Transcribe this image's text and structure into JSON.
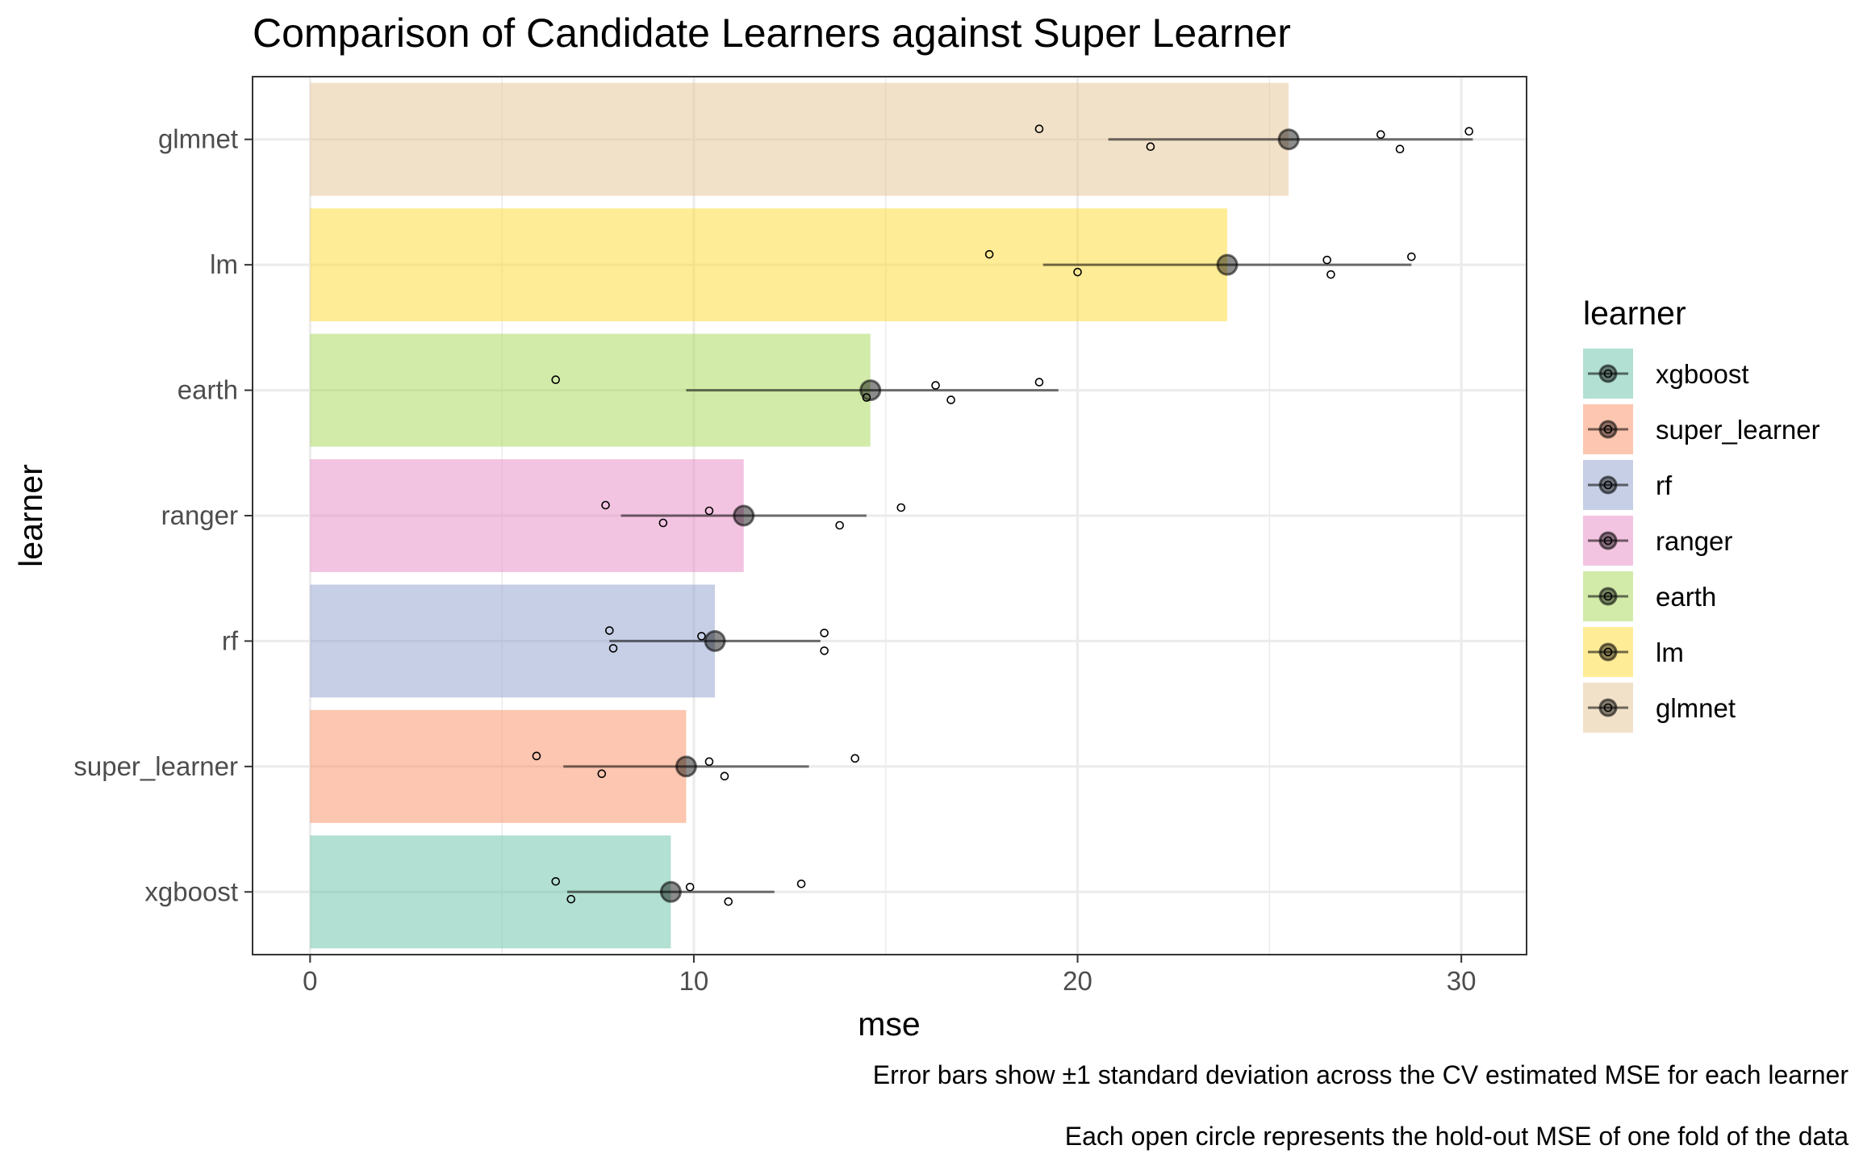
{
  "chart_data": {
    "type": "bar",
    "title": "Comparison of Candidate Learners against Super Learner",
    "xlabel": "mse",
    "ylabel": "learner",
    "xlim": [
      -1.5,
      31.7
    ],
    "x_ticks": [
      0,
      10,
      20,
      30
    ],
    "x_tick_labels": [
      "0",
      "10",
      "20",
      "30"
    ],
    "grid": true,
    "orientation": "horizontal",
    "categories": [
      "xgboost",
      "super_learner",
      "rf",
      "ranger",
      "earth",
      "lm",
      "glmnet"
    ],
    "values": [
      9.4,
      9.8,
      10.55,
      11.3,
      14.6,
      23.9,
      25.5
    ],
    "error_low": [
      6.7,
      6.6,
      7.8,
      8.1,
      9.8,
      19.1,
      20.8
    ],
    "error_high": [
      12.1,
      13.0,
      13.3,
      14.5,
      19.5,
      28.7,
      30.3
    ],
    "fold_points": [
      [
        6.4,
        6.8,
        9.9,
        10.9,
        12.8
      ],
      [
        5.9,
        7.6,
        10.4,
        10.8,
        14.2
      ],
      [
        7.8,
        7.9,
        10.2,
        13.4,
        13.4
      ],
      [
        7.7,
        9.2,
        10.4,
        13.8,
        15.4
      ],
      [
        6.4,
        14.5,
        16.3,
        16.7,
        19.0
      ],
      [
        17.7,
        20.0,
        26.5,
        26.6,
        28.7
      ],
      [
        19.0,
        21.9,
        27.9,
        28.4,
        30.2
      ]
    ],
    "colors": [
      "#66c2a5",
      "#fc8d62",
      "#8da0cb",
      "#e78ac3",
      "#a6d854",
      "#ffd92f",
      "#e5c494"
    ],
    "legend_title": "learner",
    "legend_labels": [
      "xgboost",
      "super_learner",
      "rf",
      "ranger",
      "earth",
      "lm",
      "glmnet"
    ],
    "legend_position": "right",
    "captions": [
      "Error bars show ±1 standard deviation across the CV estimated MSE for each learner",
      "Each open circle represents the hold-out MSE of one fold of the data"
    ]
  }
}
